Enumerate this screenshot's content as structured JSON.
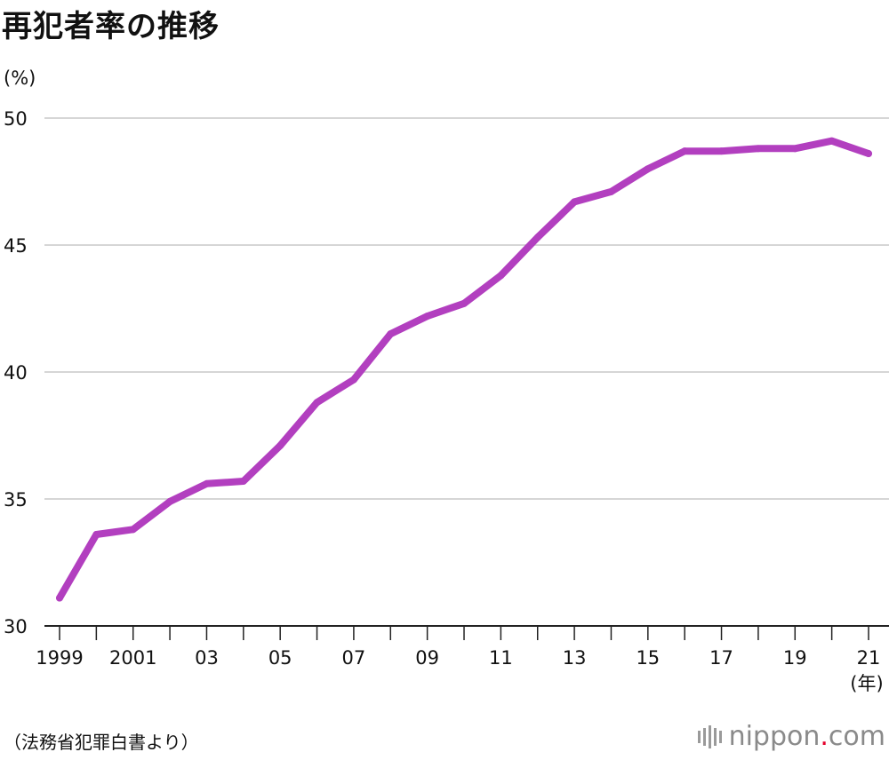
{
  "header": {
    "title": "再犯者率の推移",
    "unit": "(%)"
  },
  "x_unit": "(年)",
  "source": "（法務省犯罪白書より）",
  "brand": {
    "name": "nippon",
    "dot": ".",
    "tld": "com",
    "accent": "#e4002b"
  },
  "colors": {
    "line": "#b23fbf",
    "grid": "#c8c8c8",
    "axis": "#222222"
  },
  "chart_data": {
    "type": "line",
    "title": "再犯者率の推移",
    "xlabel": "(年)",
    "ylabel": "(%)",
    "x": [
      1999,
      2000,
      2001,
      2002,
      2003,
      2004,
      2005,
      2006,
      2007,
      2008,
      2009,
      2010,
      2011,
      2012,
      2013,
      2014,
      2015,
      2016,
      2017,
      2018,
      2019,
      2020,
      2021
    ],
    "x_tick_labels": [
      {
        "x": 1999,
        "label": "1999"
      },
      {
        "x": 2001,
        "label": "2001"
      },
      {
        "x": 2003,
        "label": "03"
      },
      {
        "x": 2005,
        "label": "05"
      },
      {
        "x": 2007,
        "label": "07"
      },
      {
        "x": 2009,
        "label": "09"
      },
      {
        "x": 2011,
        "label": "11"
      },
      {
        "x": 2013,
        "label": "13"
      },
      {
        "x": 2015,
        "label": "15"
      },
      {
        "x": 2017,
        "label": "17"
      },
      {
        "x": 2019,
        "label": "19"
      },
      {
        "x": 2021,
        "label": "21"
      }
    ],
    "y_ticks": [
      30,
      35,
      40,
      45,
      50
    ],
    "ylim": [
      30,
      50
    ],
    "grid": true,
    "series": [
      {
        "values": [
          31.1,
          33.6,
          33.8,
          34.9,
          35.6,
          35.7,
          37.1,
          38.8,
          39.7,
          41.5,
          42.2,
          42.7,
          43.8,
          45.3,
          46.7,
          47.1,
          48.0,
          48.7,
          48.7,
          48.8,
          48.8,
          49.1,
          48.6
        ]
      }
    ]
  }
}
